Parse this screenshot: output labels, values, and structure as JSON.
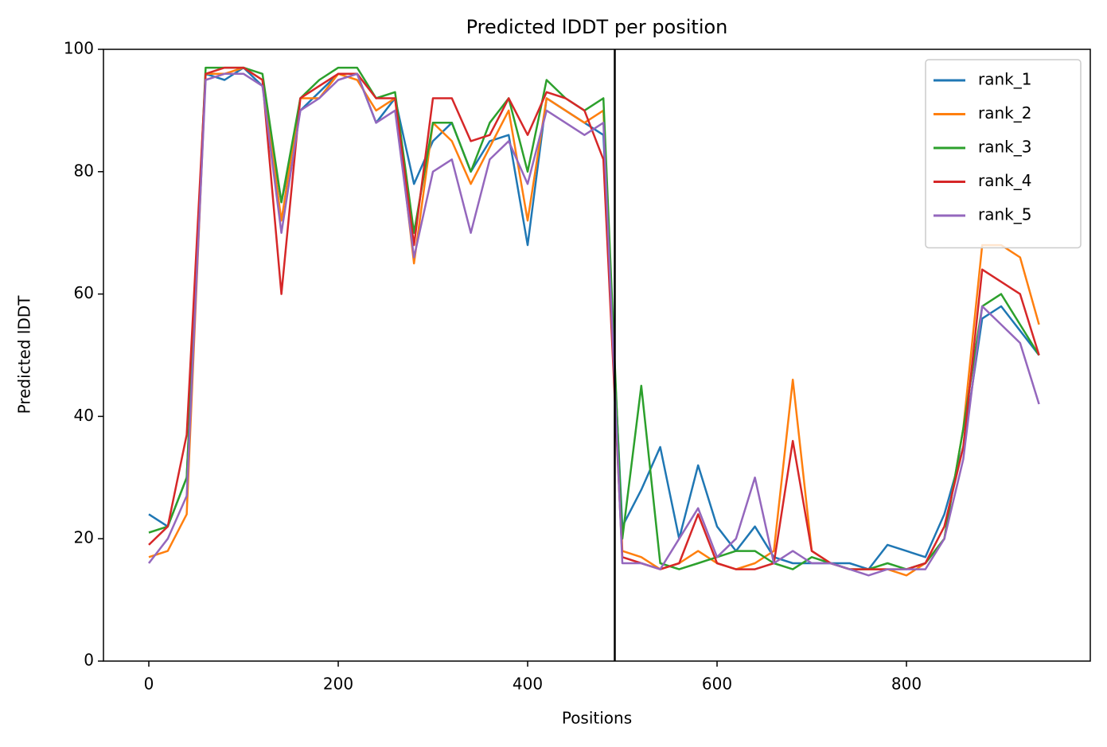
{
  "chart_data": {
    "type": "line",
    "title": "Predicted lDDT per position",
    "xlabel": "Positions",
    "ylabel": "Predicted lDDT",
    "x": [
      0,
      20,
      40,
      60,
      80,
      100,
      120,
      140,
      160,
      180,
      200,
      220,
      240,
      260,
      280,
      300,
      320,
      340,
      360,
      380,
      400,
      420,
      440,
      460,
      480,
      500,
      520,
      540,
      560,
      580,
      600,
      620,
      640,
      660,
      680,
      700,
      720,
      740,
      760,
      780,
      800,
      820,
      840,
      860,
      880,
      900,
      920,
      940
    ],
    "series": [
      {
        "name": "rank_1",
        "color": "#1f77b4",
        "values": [
          24,
          22,
          30,
          96,
          95,
          97,
          94,
          75,
          90,
          93,
          96,
          96,
          88,
          92,
          78,
          85,
          88,
          80,
          85,
          86,
          68,
          92,
          90,
          88,
          86,
          22,
          28,
          35,
          20,
          32,
          22,
          18,
          22,
          17,
          16,
          16,
          16,
          16,
          15,
          19,
          18,
          17,
          24,
          35,
          56,
          58,
          54,
          50
        ]
      },
      {
        "name": "rank_2",
        "color": "#ff7f0e",
        "values": [
          17,
          18,
          24,
          96,
          96,
          97,
          95,
          72,
          92,
          92,
          96,
          95,
          90,
          92,
          65,
          88,
          85,
          78,
          84,
          90,
          72,
          92,
          90,
          88,
          90,
          18,
          17,
          15,
          16,
          18,
          16,
          15,
          16,
          18,
          46,
          18,
          16,
          15,
          15,
          15,
          14,
          16,
          20,
          38,
          68,
          68,
          66,
          55
        ]
      },
      {
        "name": "rank_3",
        "color": "#2ca02c",
        "values": [
          21,
          22,
          30,
          97,
          97,
          97,
          96,
          75,
          92,
          95,
          97,
          97,
          92,
          93,
          70,
          88,
          88,
          80,
          88,
          92,
          80,
          95,
          92,
          90,
          92,
          20,
          45,
          16,
          15,
          16,
          17,
          18,
          18,
          16,
          15,
          17,
          16,
          15,
          15,
          16,
          15,
          16,
          20,
          38,
          58,
          60,
          55,
          50
        ]
      },
      {
        "name": "rank_4",
        "color": "#d62728",
        "values": [
          19,
          22,
          37,
          96,
          97,
          97,
          95,
          60,
          92,
          94,
          96,
          96,
          92,
          92,
          68,
          92,
          92,
          85,
          86,
          92,
          86,
          93,
          92,
          90,
          82,
          17,
          16,
          15,
          16,
          24,
          16,
          15,
          15,
          16,
          36,
          18,
          16,
          15,
          15,
          15,
          15,
          16,
          22,
          35,
          64,
          62,
          60,
          50
        ]
      },
      {
        "name": "rank_5",
        "color": "#9467bd",
        "values": [
          16,
          20,
          27,
          95,
          96,
          96,
          94,
          70,
          90,
          92,
          95,
          96,
          88,
          90,
          66,
          80,
          82,
          70,
          82,
          85,
          78,
          90,
          88,
          86,
          88,
          16,
          16,
          15,
          20,
          25,
          17,
          20,
          30,
          16,
          18,
          16,
          16,
          15,
          14,
          15,
          15,
          15,
          20,
          33,
          58,
          55,
          52,
          42
        ]
      }
    ],
    "vline": 492,
    "xlim": [
      -47.9,
      994.1
    ],
    "ylim": [
      0,
      100
    ],
    "xticks": [
      0,
      200,
      400,
      600,
      800
    ],
    "yticks": [
      0,
      20,
      40,
      60,
      80,
      100
    ],
    "grid": false,
    "legend": "upper right"
  }
}
